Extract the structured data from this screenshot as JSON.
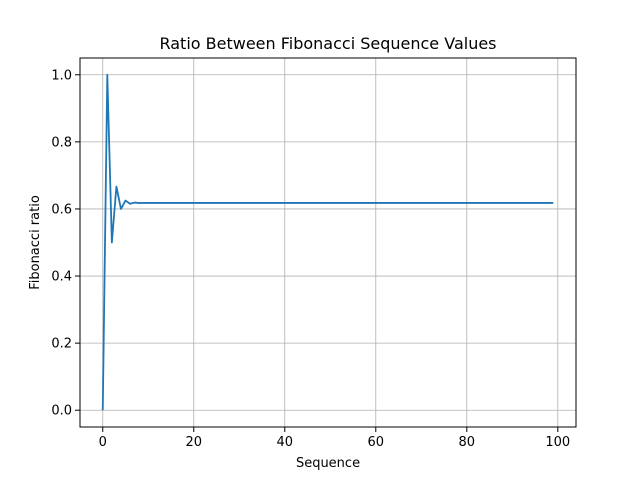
{
  "chart_data": {
    "type": "line",
    "title": "Ratio Between Fibonacci Sequence Values",
    "xlabel": "Sequence",
    "ylabel": "Fibonacci ratio",
    "xlim": [
      -5,
      104
    ],
    "ylim": [
      -0.05,
      1.05
    ],
    "x_ticks": [
      0,
      20,
      40,
      60,
      80,
      100
    ],
    "x_tick_labels": [
      "0",
      "20",
      "40",
      "60",
      "80",
      "100"
    ],
    "y_ticks": [
      0.0,
      0.2,
      0.4,
      0.6,
      0.8,
      1.0
    ],
    "y_tick_labels": [
      "0.0",
      "0.2",
      "0.4",
      "0.6",
      "0.8",
      "1.0"
    ],
    "grid": true,
    "series": [
      {
        "color": "#1f77b4",
        "x": [
          0,
          1,
          2,
          3,
          4,
          5,
          6,
          7,
          8,
          9,
          10,
          11,
          12,
          13,
          14,
          15,
          16,
          17,
          18,
          19,
          20,
          21,
          22,
          23,
          24,
          25,
          26,
          27,
          28,
          29,
          30,
          31,
          32,
          33,
          34,
          35,
          36,
          37,
          38,
          39,
          40,
          41,
          42,
          43,
          44,
          45,
          46,
          47,
          48,
          49,
          50,
          51,
          52,
          53,
          54,
          55,
          56,
          57,
          58,
          59,
          60,
          61,
          62,
          63,
          64,
          65,
          66,
          67,
          68,
          69,
          70,
          71,
          72,
          73,
          74,
          75,
          76,
          77,
          78,
          79,
          80,
          81,
          82,
          83,
          84,
          85,
          86,
          87,
          88,
          89,
          90,
          91,
          92,
          93,
          94,
          95,
          96,
          97,
          98,
          99
        ],
        "values": [
          0.0,
          1.0,
          0.5,
          0.6667,
          0.6,
          0.625,
          0.6154,
          0.619,
          0.6176,
          0.6182,
          0.618,
          0.618,
          0.618,
          0.618,
          0.618,
          0.618,
          0.618,
          0.618,
          0.618,
          0.618,
          0.618,
          0.618,
          0.618,
          0.618,
          0.618,
          0.618,
          0.618,
          0.618,
          0.618,
          0.618,
          0.618,
          0.618,
          0.618,
          0.618,
          0.618,
          0.618,
          0.618,
          0.618,
          0.618,
          0.618,
          0.618,
          0.618,
          0.618,
          0.618,
          0.618,
          0.618,
          0.618,
          0.618,
          0.618,
          0.618,
          0.618,
          0.618,
          0.618,
          0.618,
          0.618,
          0.618,
          0.618,
          0.618,
          0.618,
          0.618,
          0.618,
          0.618,
          0.618,
          0.618,
          0.618,
          0.618,
          0.618,
          0.618,
          0.618,
          0.618,
          0.618,
          0.618,
          0.618,
          0.618,
          0.618,
          0.618,
          0.618,
          0.618,
          0.618,
          0.618,
          0.618,
          0.618,
          0.618,
          0.618,
          0.618,
          0.618,
          0.618,
          0.618,
          0.618,
          0.618,
          0.618,
          0.618,
          0.618,
          0.618,
          0.618,
          0.618,
          0.618,
          0.618,
          0.618,
          0.618
        ]
      }
    ]
  }
}
